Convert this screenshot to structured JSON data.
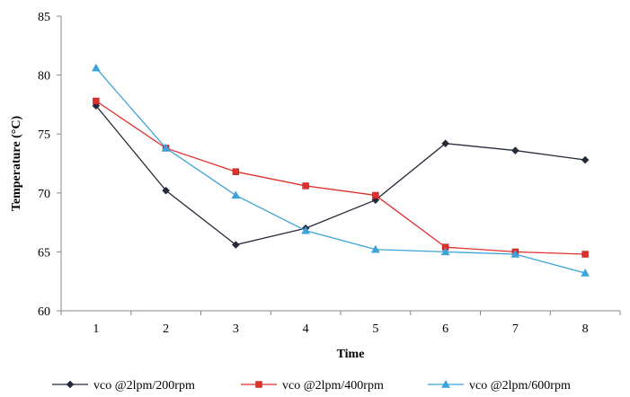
{
  "chart_data": {
    "type": "line",
    "title": "",
    "xlabel": "Time",
    "ylabel": "Temperature (°C)",
    "categories": [
      "1",
      "2",
      "3",
      "4",
      "5",
      "6",
      "7",
      "8"
    ],
    "ylim": [
      60,
      85
    ],
    "yticks": [
      60,
      65,
      70,
      75,
      80,
      85
    ],
    "grid": false,
    "legend_position": "bottom",
    "series": [
      {
        "name": "vco @2lpm/200rpm",
        "color": "#262b3a",
        "marker": "diamond",
        "values": [
          77.4,
          70.2,
          65.6,
          67.0,
          69.4,
          74.2,
          73.6,
          72.8
        ]
      },
      {
        "name": "vco @2lpm/400rpm",
        "color": "#e0302d",
        "marker": "square",
        "values": [
          77.8,
          73.8,
          71.8,
          70.6,
          69.8,
          65.4,
          65.0,
          64.8
        ]
      },
      {
        "name": "vco @2lpm/600rpm",
        "color": "#3ba3d9",
        "marker": "triangle",
        "values": [
          80.6,
          73.8,
          69.8,
          66.8,
          65.2,
          65.0,
          64.8,
          63.2
        ]
      }
    ]
  }
}
